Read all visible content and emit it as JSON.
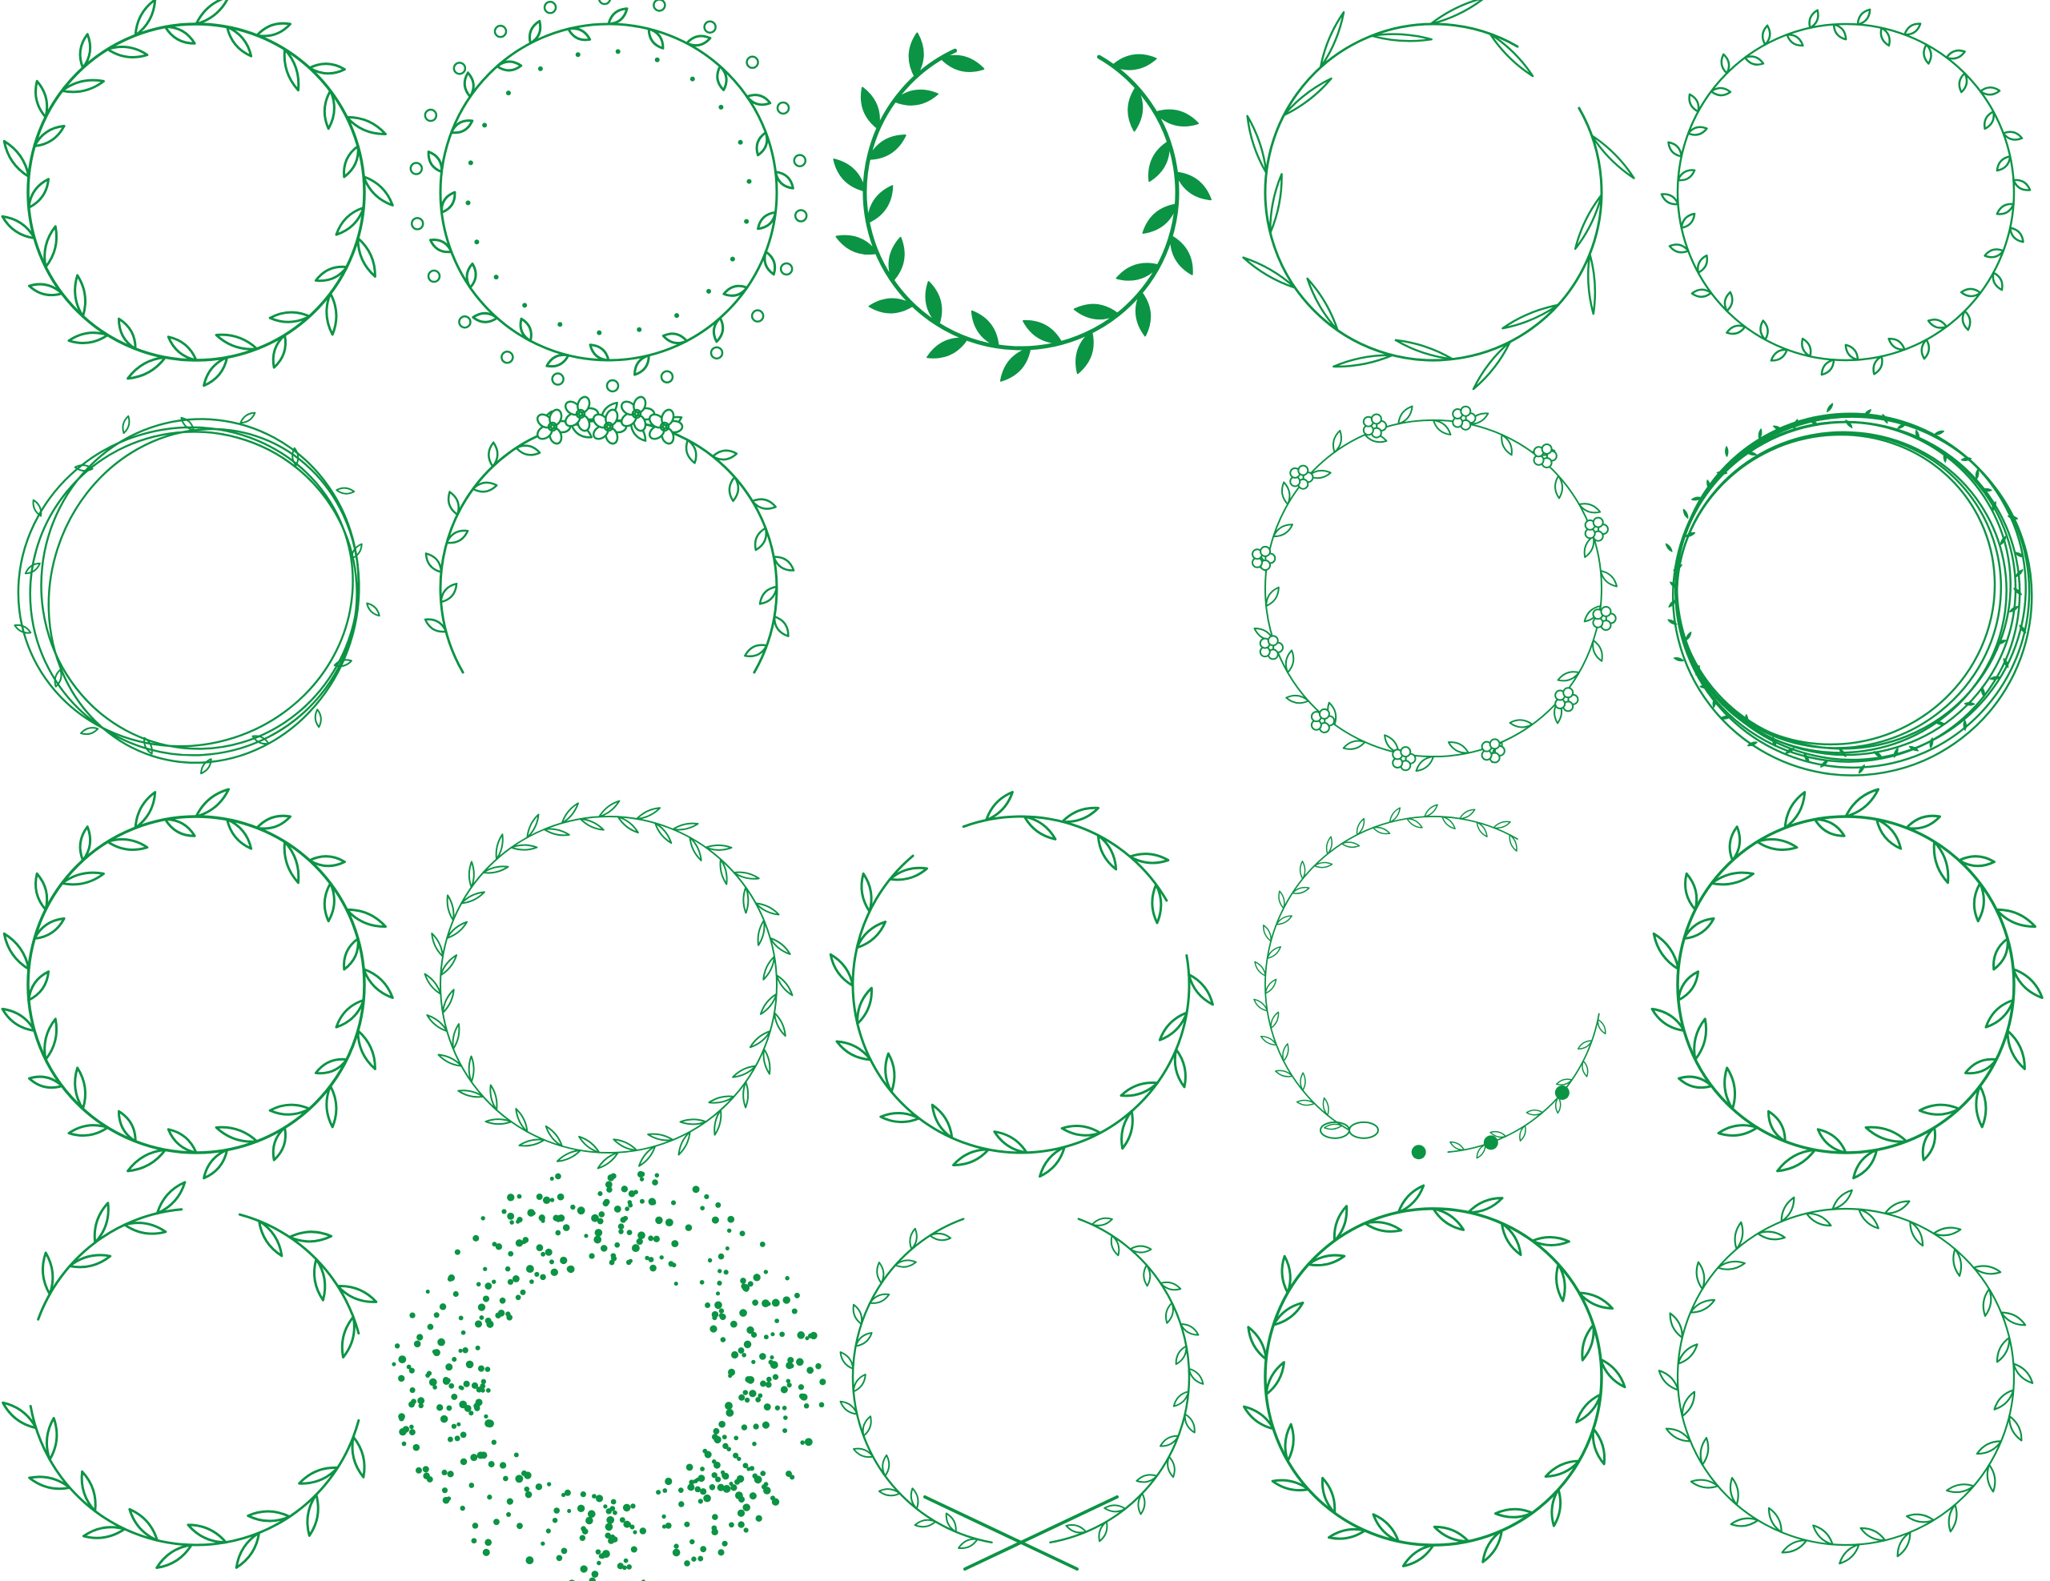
{
  "sheet": {
    "background": "#ffffff",
    "accent": "#0b9444",
    "grid": {
      "rows": 4,
      "columns": 5
    },
    "wreaths": [
      {
        "style": "leafy-outline",
        "visible": true
      },
      {
        "style": "curly-leaf-with-dots",
        "visible": true
      },
      {
        "style": "solid-leaves",
        "visible": true
      },
      {
        "style": "sparse-willow",
        "visible": true
      },
      {
        "style": "small-bud-leaves",
        "visible": true
      },
      {
        "style": "tangled-vines",
        "visible": true
      },
      {
        "style": "floral-top-arch",
        "visible": true
      },
      {
        "style": "empty-slot",
        "visible": false
      },
      {
        "style": "daisy-chain",
        "visible": true
      },
      {
        "style": "dense-twig-ring",
        "visible": true
      },
      {
        "style": "leafy-outline",
        "visible": true
      },
      {
        "style": "fine-fern",
        "visible": true
      },
      {
        "style": "open-pointed-leaves",
        "visible": true
      },
      {
        "style": "bow-and-flowers-open",
        "visible": true
      },
      {
        "style": "leafy-outline",
        "visible": true
      },
      {
        "style": "broken-leaf-ring",
        "visible": true
      },
      {
        "style": "dot-ring",
        "visible": true
      },
      {
        "style": "laurel-crossed",
        "visible": true
      },
      {
        "style": "pointed-leaves",
        "visible": true
      },
      {
        "style": "fine-leaf-ring",
        "visible": true
      }
    ]
  }
}
